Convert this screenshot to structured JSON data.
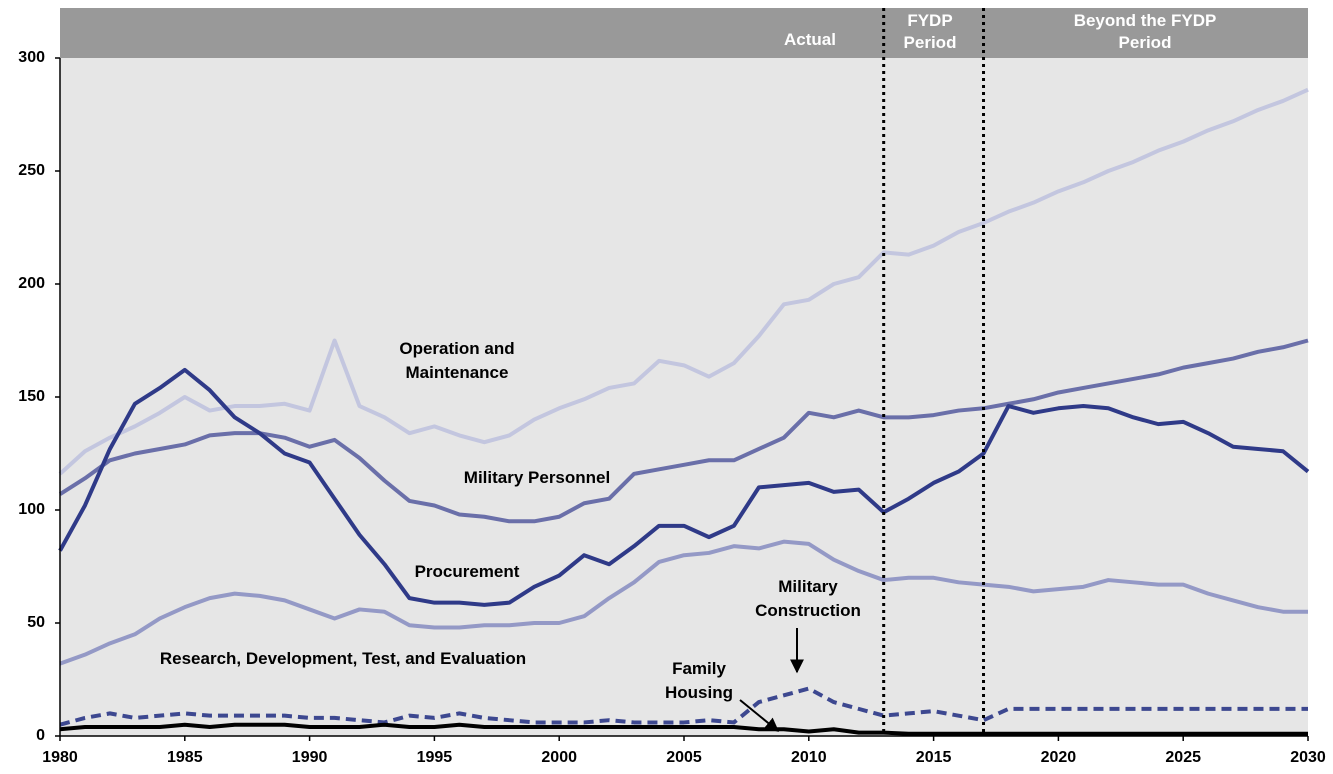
{
  "chart_data": {
    "type": "line",
    "x": [
      1980,
      1981,
      1982,
      1983,
      1984,
      1985,
      1986,
      1987,
      1988,
      1989,
      1990,
      1991,
      1992,
      1993,
      1994,
      1995,
      1996,
      1997,
      1998,
      1999,
      2000,
      2001,
      2002,
      2003,
      2004,
      2005,
      2006,
      2007,
      2008,
      2009,
      2010,
      2011,
      2012,
      2013,
      2014,
      2015,
      2016,
      2017,
      2018,
      2019,
      2020,
      2021,
      2022,
      2023,
      2024,
      2025,
      2026,
      2027,
      2028,
      2029,
      2030
    ],
    "series": [
      {
        "name": "Operation and Maintenance",
        "color": "#c3c6df",
        "style": "solid",
        "values": [
          116,
          126,
          132,
          137,
          143,
          150,
          144,
          146,
          146,
          147,
          144,
          175,
          146,
          141,
          134,
          137,
          133,
          130,
          133,
          140,
          145,
          149,
          154,
          156,
          166,
          164,
          159,
          165,
          177,
          191,
          193,
          200,
          203,
          214,
          213,
          217,
          223,
          227,
          232,
          236,
          241,
          245,
          250,
          254,
          259,
          263,
          268,
          272,
          277,
          281,
          286
        ]
      },
      {
        "name": "Military Personnel",
        "color": "#6a6fa9",
        "style": "solid",
        "values": [
          107,
          114,
          122,
          125,
          127,
          129,
          133,
          134,
          134,
          132,
          128,
          131,
          123,
          113,
          104,
          102,
          98,
          97,
          95,
          95,
          97,
          103,
          105,
          116,
          118,
          120,
          122,
          122,
          127,
          132,
          143,
          141,
          144,
          141,
          141,
          142,
          144,
          145,
          147,
          149,
          152,
          154,
          156,
          158,
          160,
          163,
          165,
          167,
          170,
          172,
          175
        ]
      },
      {
        "name": "Procurement",
        "color": "#2f3a88",
        "style": "solid",
        "values": [
          82,
          102,
          127,
          147,
          154,
          162,
          153,
          141,
          134,
          125,
          121,
          105,
          89,
          76,
          61,
          59,
          59,
          58,
          59,
          66,
          71,
          80,
          76,
          84,
          93,
          93,
          88,
          93,
          110,
          111,
          112,
          108,
          109,
          99,
          105,
          112,
          117,
          125,
          146,
          143,
          145,
          146,
          145,
          141,
          138,
          139,
          134,
          128,
          127,
          126,
          117
        ]
      },
      {
        "name": "Research, Development, Test, and Evaluation",
        "color": "#9499c6",
        "style": "solid",
        "values": [
          32,
          36,
          41,
          45,
          52,
          57,
          61,
          63,
          62,
          60,
          56,
          52,
          56,
          55,
          49,
          48,
          48,
          49,
          49,
          50,
          50,
          53,
          61,
          68,
          77,
          80,
          81,
          84,
          83,
          86,
          85,
          78,
          73,
          69,
          70,
          70,
          68,
          67,
          66,
          64,
          65,
          66,
          69,
          68,
          67,
          67,
          63,
          60,
          57,
          55,
          55
        ]
      },
      {
        "name": "Military Construction",
        "color": "#3d4890",
        "style": "dashed",
        "values": [
          5,
          8,
          10,
          8,
          9,
          10,
          9,
          9,
          9,
          9,
          8,
          8,
          7,
          6,
          9,
          8,
          10,
          8,
          7,
          6,
          6,
          6,
          7,
          6,
          6,
          6,
          7,
          6,
          15,
          18,
          21,
          15,
          12,
          9,
          10,
          11,
          9,
          7,
          12,
          12,
          12,
          12,
          12,
          12,
          12,
          12,
          12,
          12,
          12,
          12,
          12
        ]
      },
      {
        "name": "Family Housing",
        "color": "#000000",
        "style": "solid",
        "values": [
          3,
          4,
          4,
          4,
          4,
          5,
          4,
          5,
          5,
          5,
          4,
          4,
          4,
          5,
          4,
          4,
          5,
          4,
          4,
          4,
          4,
          4,
          4,
          4,
          4,
          4,
          4,
          4,
          3,
          3,
          2,
          3,
          1.5,
          1.5,
          1,
          1,
          1,
          1,
          1,
          1,
          1,
          1,
          1,
          1,
          1,
          1,
          1,
          1,
          1,
          1,
          1
        ]
      }
    ],
    "periods": [
      "Actual",
      "FYDP Period",
      "Beyond the FYDP Period"
    ],
    "period_dividers": [
      2013,
      2017
    ],
    "xlim": [
      1980,
      2030
    ],
    "xticks": [
      1980,
      1985,
      1990,
      1995,
      2000,
      2005,
      2010,
      2015,
      2020,
      2025,
      2030
    ],
    "ylim": [
      0,
      300
    ],
    "yticks": [
      0,
      50,
      100,
      150,
      200,
      250,
      300
    ]
  }
}
